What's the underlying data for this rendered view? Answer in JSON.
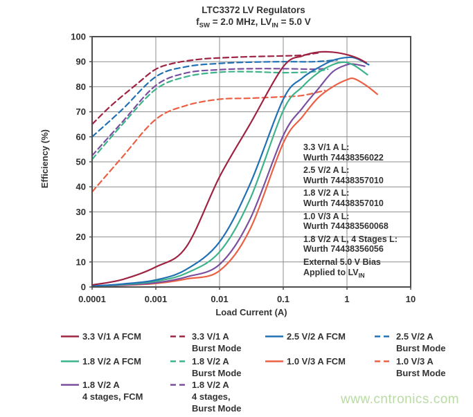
{
  "title": "LTC3372 LV Regulators",
  "subtitle": {
    "f": "f",
    "f_sub": "SW",
    "mid": " = 2.0 MHz, LV",
    "lv_sub": "IN",
    "end": " = 5.0 V"
  },
  "watermark": "www.cntronics.com",
  "colors": {
    "crimson": "#9e2342",
    "blue": "#2070b4",
    "green": "#3cb389",
    "purple": "#7b4fa0",
    "orange": "#eb6044",
    "grid": "#8c8c8c",
    "frame": "#4d4d4d",
    "text": "#2f2f2f",
    "watermark": "#b9dba3"
  },
  "chart_data": {
    "type": "line",
    "title": "LTC3372 LV Regulators",
    "subtitle": "fSW = 2.0 MHz, LVIN = 5.0 V",
    "xlabel": "Load Current (A)",
    "ylabel": "Efficiency (%)",
    "x_scale": "log",
    "xlim": [
      0.0001,
      10
    ],
    "ylim": [
      0,
      100
    ],
    "grid": true,
    "x_ticks": [
      {
        "v": 0.0001,
        "label": "0.0001"
      },
      {
        "v": 0.001,
        "label": "0.001"
      },
      {
        "v": 0.01,
        "label": "0.01"
      },
      {
        "v": 0.1,
        "label": "0.1"
      },
      {
        "v": 1,
        "label": "1"
      },
      {
        "v": 10,
        "label": "10"
      }
    ],
    "y_ticks": [
      {
        "v": 0,
        "label": "0"
      },
      {
        "v": 10,
        "label": "10"
      },
      {
        "v": 20,
        "label": "20"
      },
      {
        "v": 30,
        "label": "30"
      },
      {
        "v": 40,
        "label": "40"
      },
      {
        "v": 50,
        "label": "50"
      },
      {
        "v": 60,
        "label": "60"
      },
      {
        "v": 70,
        "label": "70"
      },
      {
        "v": 80,
        "label": "80"
      },
      {
        "v": 90,
        "label": "90"
      },
      {
        "v": 100,
        "label": "100"
      }
    ],
    "series": [
      {
        "name": "2.5 V/2 A Burst Mode",
        "color": "#2070b4",
        "dash": true,
        "points": [
          [
            0.0001,
            60
          ],
          [
            0.0003,
            71
          ],
          [
            0.001,
            84
          ],
          [
            0.003,
            88
          ],
          [
            0.01,
            89.3
          ],
          [
            0.03,
            89.8
          ],
          [
            0.1,
            90
          ],
          [
            0.3,
            90
          ],
          [
            0.7,
            90.7
          ]
        ]
      },
      {
        "name": "1.8 V/2 A 4 stages, Burst Mode",
        "color": "#7b4fa0",
        "dash": true,
        "points": [
          [
            0.0001,
            52.5
          ],
          [
            0.0003,
            66
          ],
          [
            0.001,
            80.5
          ],
          [
            0.003,
            85.5
          ],
          [
            0.01,
            86.8
          ],
          [
            0.03,
            87.2
          ],
          [
            0.1,
            87.2
          ],
          [
            0.3,
            87
          ],
          [
            0.5,
            87.3
          ]
        ]
      },
      {
        "name": "1.8 V/2 A Burst Mode",
        "color": "#3cb389",
        "dash": true,
        "points": [
          [
            0.0001,
            51
          ],
          [
            0.0003,
            65
          ],
          [
            0.001,
            79
          ],
          [
            0.003,
            84
          ],
          [
            0.01,
            85.8
          ],
          [
            0.03,
            86
          ],
          [
            0.1,
            85.6
          ],
          [
            0.3,
            86
          ],
          [
            0.5,
            87
          ]
        ]
      },
      {
        "name": "3.3 V/1 A Burst Mode",
        "color": "#9e2342",
        "dash": true,
        "points": [
          [
            0.0001,
            65
          ],
          [
            0.0002,
            72.5
          ],
          [
            0.0005,
            81
          ],
          [
            0.001,
            87
          ],
          [
            0.002,
            89.5
          ],
          [
            0.005,
            91
          ],
          [
            0.01,
            91.5
          ],
          [
            0.03,
            92
          ],
          [
            0.1,
            92.3
          ],
          [
            0.2,
            92.6
          ],
          [
            0.35,
            93.5
          ]
        ]
      },
      {
        "name": "1.0 V/3 A Burst Mode",
        "color": "#eb6044",
        "dash": true,
        "points": [
          [
            0.0001,
            38
          ],
          [
            0.0003,
            52
          ],
          [
            0.001,
            67
          ],
          [
            0.003,
            72.5
          ],
          [
            0.01,
            75
          ],
          [
            0.03,
            75.4
          ],
          [
            0.1,
            76
          ],
          [
            0.2,
            76.5
          ],
          [
            0.45,
            78.5
          ]
        ]
      },
      {
        "name": "1.0 V/3 A FCM",
        "color": "#eb6044",
        "dash": false,
        "points": [
          [
            0.0001,
            0.25
          ],
          [
            0.0003,
            0.7
          ],
          [
            0.001,
            1.4
          ],
          [
            0.003,
            3.2
          ],
          [
            0.01,
            6.5
          ],
          [
            0.03,
            23
          ],
          [
            0.1,
            57.5
          ],
          [
            0.2,
            68
          ],
          [
            0.35,
            75.5
          ],
          [
            0.6,
            80
          ],
          [
            1,
            82.8
          ],
          [
            1.3,
            83.2
          ],
          [
            2,
            80.5
          ],
          [
            3,
            77
          ]
        ]
      },
      {
        "name": "1.8 V/2 A 4 stages, FCM",
        "color": "#7b4fa0",
        "dash": false,
        "points": [
          [
            0.0001,
            0.3
          ],
          [
            0.0003,
            0.8
          ],
          [
            0.001,
            1.7
          ],
          [
            0.003,
            4
          ],
          [
            0.01,
            9
          ],
          [
            0.03,
            27
          ],
          [
            0.1,
            60.5
          ],
          [
            0.2,
            71.5
          ],
          [
            0.35,
            79
          ],
          [
            0.6,
            86
          ],
          [
            1,
            88.8
          ],
          [
            1.3,
            89
          ],
          [
            1.9,
            88.2
          ]
        ]
      },
      {
        "name": "1.8 V/2 A FCM",
        "color": "#3cb389",
        "dash": false,
        "points": [
          [
            0.0001,
            0.35
          ],
          [
            0.0003,
            1
          ],
          [
            0.001,
            2.3
          ],
          [
            0.003,
            5.5
          ],
          [
            0.01,
            14
          ],
          [
            0.03,
            35
          ],
          [
            0.1,
            70.5
          ],
          [
            0.2,
            80
          ],
          [
            0.35,
            85.5
          ],
          [
            0.6,
            88.8
          ],
          [
            0.9,
            89.8
          ],
          [
            1.3,
            88.5
          ],
          [
            2.1,
            84.8
          ]
        ]
      },
      {
        "name": "2.5 V/2 A FCM",
        "color": "#2070b4",
        "dash": false,
        "points": [
          [
            0.0001,
            0.4
          ],
          [
            0.0003,
            1.2
          ],
          [
            0.001,
            2.8
          ],
          [
            0.003,
            7
          ],
          [
            0.01,
            18
          ],
          [
            0.03,
            41
          ],
          [
            0.1,
            75
          ],
          [
            0.2,
            83.5
          ],
          [
            0.35,
            87.5
          ],
          [
            0.6,
            90.5
          ],
          [
            1,
            91.7
          ],
          [
            1.4,
            91.3
          ],
          [
            2.2,
            88.8
          ]
        ]
      },
      {
        "name": "3.3 V/1 A FCM",
        "color": "#9e2342",
        "dash": false,
        "points": [
          [
            0.0001,
            0.8
          ],
          [
            0.0003,
            3
          ],
          [
            0.001,
            8
          ],
          [
            0.003,
            16
          ],
          [
            0.01,
            44
          ],
          [
            0.03,
            65
          ],
          [
            0.1,
            88
          ],
          [
            0.2,
            92.3
          ],
          [
            0.35,
            93.8
          ],
          [
            0.6,
            93.8
          ],
          [
            1,
            92.8
          ],
          [
            1.5,
            91.3
          ],
          [
            2,
            89.6
          ]
        ]
      }
    ]
  },
  "annotation": {
    "inductors": [
      {
        "label": "3.3 V/1 A L:",
        "value": "Wurth 74438356022"
      },
      {
        "label": "2.5 V/2 A L:",
        "value": "Wurth 74438357010"
      },
      {
        "label": "1.8 V/2 A L:",
        "value": "Wurth 74438357010"
      },
      {
        "label": "1.0 V/3 A L:",
        "value": "Wurth 744383560068"
      },
      {
        "label": "1.8 V/2 A L, 4 Stages L:",
        "value": "Wurth 74438356056"
      }
    ],
    "bias": {
      "line1": "External 5.0 V Bias",
      "line2_main": "Applied to LV",
      "line2_sub": "IN"
    }
  },
  "legend": {
    "columns": [
      {
        "items": [
          {
            "lines": [
              "3.3 V/1 A FCM"
            ],
            "color": "#9e2342",
            "dash": false
          },
          {
            "lines": [
              "1.8 V/2 A FCM"
            ],
            "color": "#3cb389",
            "dash": false
          },
          {
            "lines": [
              "1.8 V/2 A",
              "4 stages, FCM"
            ],
            "color": "#7b4fa0",
            "dash": false
          }
        ]
      },
      {
        "items": [
          {
            "lines": [
              "3.3 V/1 A",
              "Burst Mode"
            ],
            "color": "#9e2342",
            "dash": true
          },
          {
            "lines": [
              "1.8 V/2 A",
              "Burst Mode"
            ],
            "color": "#3cb389",
            "dash": true
          },
          {
            "lines": [
              "1.8 V/2 A",
              "4 stages,",
              "Burst Mode"
            ],
            "color": "#7b4fa0",
            "dash": true
          }
        ]
      },
      {
        "items": [
          {
            "lines": [
              "2.5 V/2 A FCM"
            ],
            "color": "#2070b4",
            "dash": false
          },
          {
            "lines": [
              "1.0 V/3 A FCM"
            ],
            "color": "#eb6044",
            "dash": false
          }
        ]
      },
      {
        "items": [
          {
            "lines": [
              "2.5 V/2 A",
              "Burst Mode"
            ],
            "color": "#2070b4",
            "dash": true
          },
          {
            "lines": [
              "1.0 V/3 A",
              "Burst Mode"
            ],
            "color": "#eb6044",
            "dash": true
          }
        ]
      }
    ]
  }
}
